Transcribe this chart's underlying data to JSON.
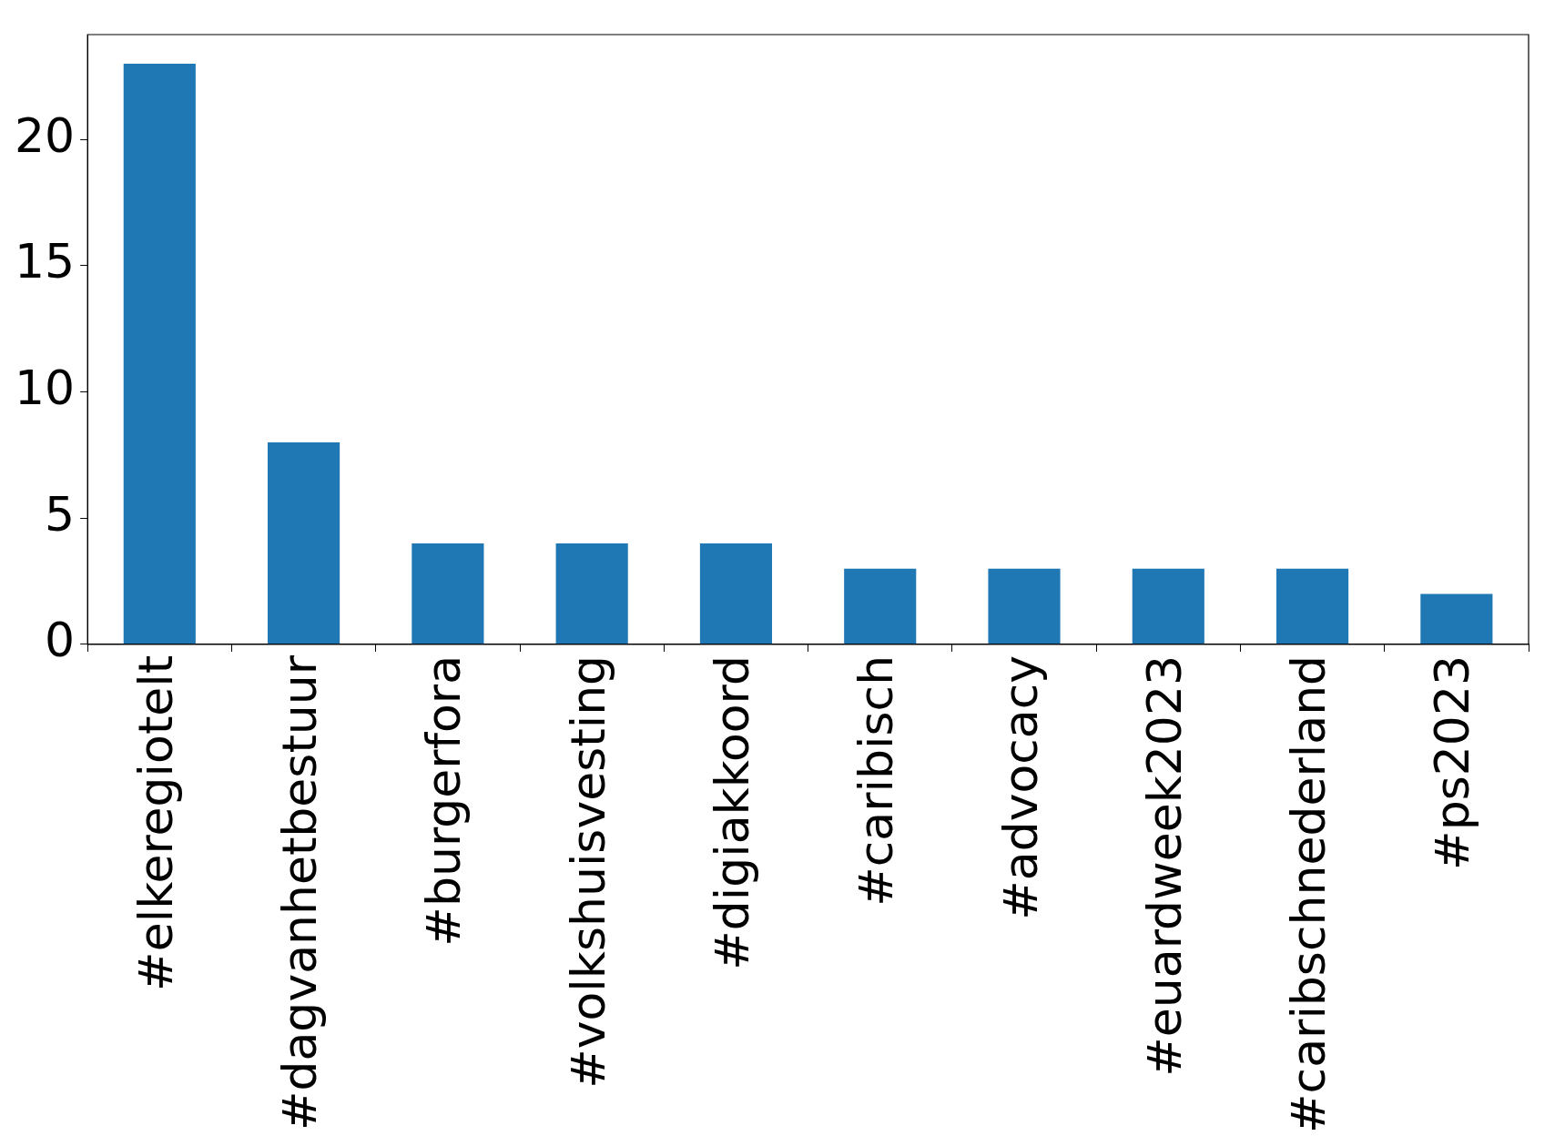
{
  "chart_data": {
    "type": "bar",
    "categories": [
      "#elkeregiotelt",
      "#dagvanhetbestuur",
      "#burgerfora",
      "#volkshuisvesting",
      "#digiakkoord",
      "#caribisch",
      "#advocacy",
      "#euardweek2023",
      "#caribschnederland",
      "#ps2023"
    ],
    "values": [
      23,
      8,
      4,
      4,
      4,
      3,
      3,
      3,
      3,
      2
    ],
    "color": "#1f77b4",
    "ylim": [
      0,
      24.15
    ],
    "yticks": [
      0,
      5,
      10,
      15,
      20
    ],
    "grid": false,
    "legend": false
  }
}
